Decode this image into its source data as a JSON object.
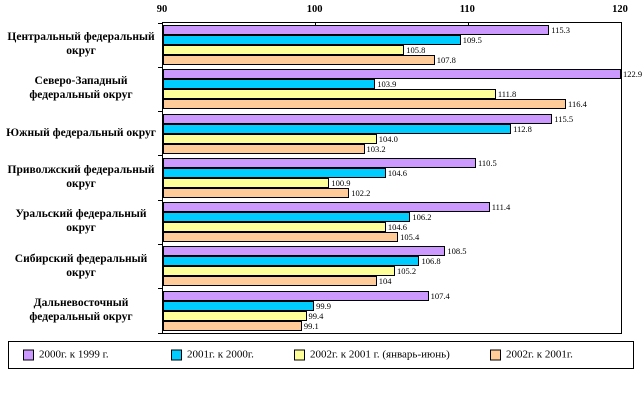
{
  "chart_data": {
    "type": "bar",
    "orientation": "horizontal",
    "categories": [
      "Центральный федеральный округ",
      "Северо-Западный федеральный округ",
      "Южный федеральный округ",
      "Приволжский федеральный округ",
      "Уральский федеральный округ",
      "Сибирский федеральный округ",
      "Дальневосточный федеральный округ"
    ],
    "series": [
      {
        "name": "2000г. к 1999 г.",
        "color": "#cc99ff",
        "values": [
          115.3,
          122.9,
          115.5,
          110.5,
          111.4,
          108.5,
          107.4
        ],
        "labels": [
          "115.3",
          "122.9",
          "115.5",
          "110.5",
          "111.4",
          "108.5",
          "107.4"
        ]
      },
      {
        "name": "2001г. к 2000г.",
        "color": "#00ccff",
        "values": [
          109.5,
          103.9,
          112.8,
          104.6,
          106.2,
          106.8,
          99.9
        ],
        "labels": [
          "109.5",
          "103.9",
          "112.8",
          "104.6",
          "106.2",
          "106.8",
          "99.9"
        ]
      },
      {
        "name": "2002г. к 2001 г. (январь-июнь)",
        "color": "#ffff99",
        "values": [
          105.8,
          111.8,
          104.0,
          100.9,
          104.6,
          105.2,
          99.4
        ],
        "labels": [
          "105.8",
          "111.8",
          "104.0",
          "100.9",
          "104.6",
          "105.2",
          "99.4"
        ]
      },
      {
        "name": "2002г. к 2001г.",
        "color": "#ffcc99",
        "values": [
          107.8,
          116.4,
          103.2,
          102.2,
          105.4,
          104,
          99.1
        ],
        "labels": [
          "107.8",
          "116.4",
          "103.2",
          "102.2",
          "105.4",
          "104",
          "99.1"
        ]
      }
    ],
    "x_axis": {
      "min": 90,
      "max": 120,
      "ticks": [
        90,
        100,
        110,
        120
      ],
      "tick_labels": [
        "90",
        "100",
        "110",
        "120"
      ],
      "position": "top"
    },
    "legend_position": "bottom",
    "grid": false,
    "bar_border_color": "#000000",
    "background": "#ffffff"
  }
}
